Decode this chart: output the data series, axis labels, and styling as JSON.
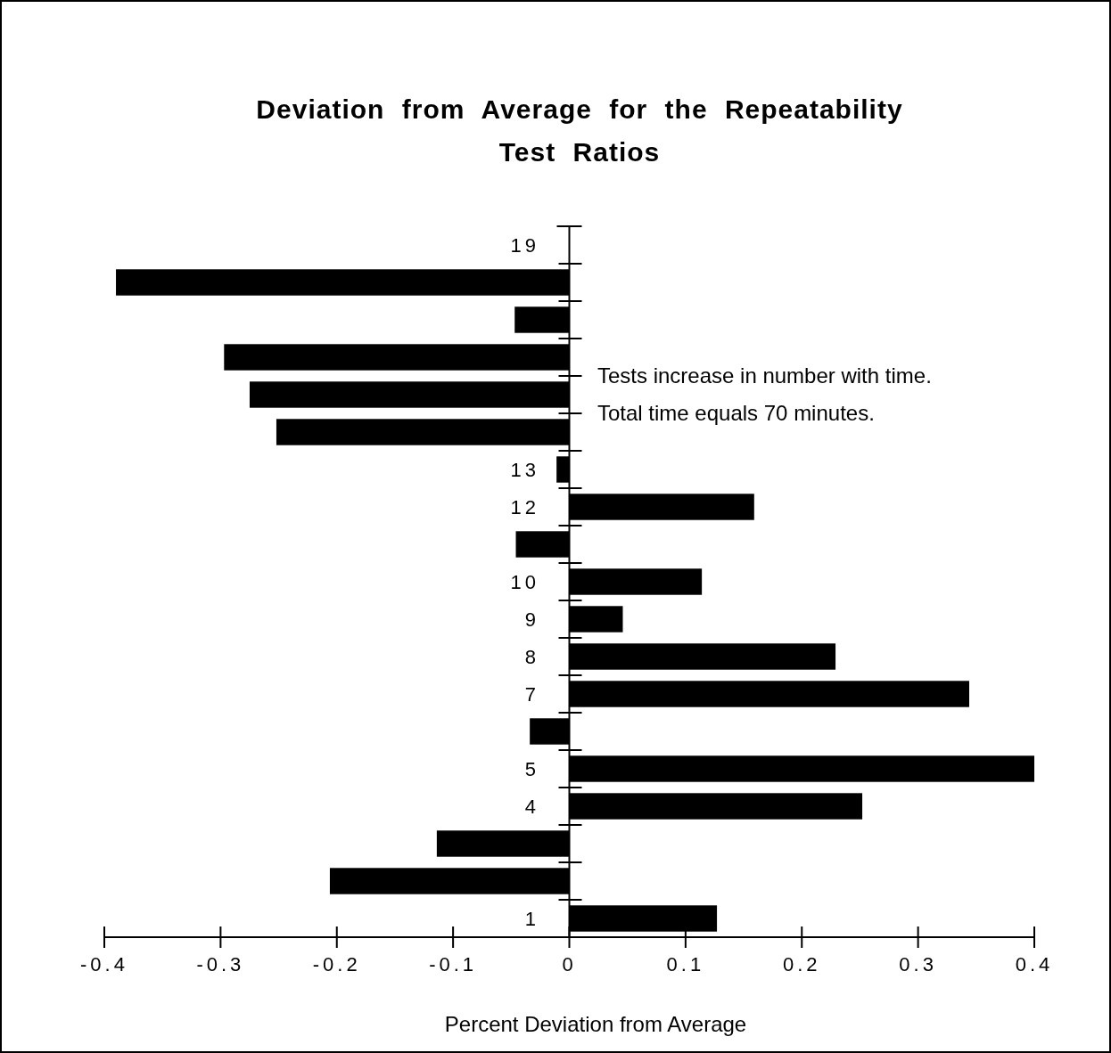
{
  "chart_data": {
    "type": "bar",
    "orientation": "horizontal",
    "title": "Deviation from Average for the Repeatability Test Ratios",
    "xlabel": "Percent Deviation from Average",
    "categories": [
      "19",
      null,
      null,
      null,
      null,
      null,
      "13",
      "12",
      null,
      "10",
      "9",
      "8",
      "7",
      null,
      "5",
      "4",
      null,
      null,
      "1"
    ],
    "values": [
      null,
      -0.39,
      -0.047,
      -0.297,
      -0.275,
      -0.252,
      -0.011,
      0.159,
      -0.046,
      0.114,
      0.046,
      0.229,
      0.344,
      -0.034,
      0.4,
      0.252,
      -0.114,
      -0.206,
      0.127
    ],
    "color": "#000000",
    "xlim": [
      -0.4,
      0.4
    ],
    "xticks": [
      {
        "value": -0.4,
        "label": "-0.4"
      },
      {
        "value": -0.3,
        "label": "-0.3"
      },
      {
        "value": -0.2,
        "label": "-0.2"
      },
      {
        "value": -0.1,
        "label": "-0.1"
      },
      0,
      0.1,
      0.2,
      0.3,
      0.4
    ],
    "annotations": [
      "Tests increase in number with time.",
      "Total time equals 70 minutes."
    ]
  }
}
